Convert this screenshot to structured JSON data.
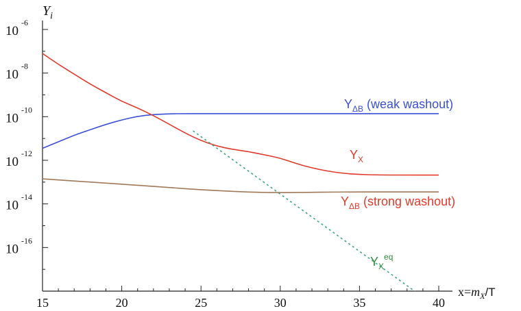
{
  "chart_data": {
    "type": "line",
    "title": "",
    "ylabel": {
      "base": "Y",
      "sub": "i"
    },
    "xlabel": {
      "prefix": "x=",
      "italic": "m",
      "sub": "X",
      "suffix": "/T"
    },
    "xlim": [
      15,
      40
    ],
    "ylim_log10": [
      -18,
      -6
    ],
    "yscale": "log",
    "grid": false,
    "x_ticks": [
      "15",
      "20",
      "25",
      "30",
      "35",
      "40"
    ],
    "y_ticks": [
      {
        "base": "10",
        "exp": "-6"
      },
      {
        "base": "10",
        "exp": "-8"
      },
      {
        "base": "10",
        "exp": "-10"
      },
      {
        "base": "10",
        "exp": "-12"
      },
      {
        "base": "10",
        "exp": "-14"
      },
      {
        "base": "10",
        "exp": "-16"
      }
    ],
    "series": [
      {
        "label": {
          "base": "Y",
          "sub": "ΔB",
          "suffix": " (weak washout)"
        },
        "color": "#3a4fd6",
        "style": "solid",
        "x": [
          15,
          16,
          17,
          18,
          19,
          20,
          21,
          22,
          23,
          24,
          25,
          28,
          32,
          36,
          40
        ],
        "log10y": [
          -11.45,
          -11.15,
          -10.85,
          -10.6,
          -10.35,
          -10.15,
          -9.98,
          -9.9,
          -9.87,
          -9.86,
          -9.86,
          -9.86,
          -9.86,
          -9.86,
          -9.86
        ]
      },
      {
        "label": {
          "base": "Y",
          "sub": "X",
          "suffix": ""
        },
        "color": "#e03a2a",
        "style": "solid",
        "x": [
          15,
          16,
          17,
          18,
          19,
          20,
          21,
          22,
          23,
          24,
          25,
          26,
          27,
          28,
          29,
          30,
          31,
          32,
          33,
          34,
          35,
          36,
          38,
          40
        ],
        "log10y": [
          -7.1,
          -7.6,
          -8.05,
          -8.5,
          -8.9,
          -9.3,
          -9.6,
          -9.95,
          -10.35,
          -10.75,
          -11.1,
          -11.35,
          -11.5,
          -11.6,
          -11.75,
          -11.9,
          -12.15,
          -12.35,
          -12.5,
          -12.6,
          -12.65,
          -12.67,
          -12.68,
          -12.68
        ]
      },
      {
        "label": {
          "base": "Y",
          "sub": "ΔB",
          "suffix": " (strong washout)"
        },
        "color": "#a07858",
        "style": "solid",
        "x": [
          15,
          18,
          20.5,
          23,
          25,
          27,
          29,
          31,
          34,
          37,
          40
        ],
        "log10y": [
          -12.85,
          -13.0,
          -13.12,
          -13.25,
          -13.35,
          -13.43,
          -13.48,
          -13.48,
          -13.45,
          -13.45,
          -13.45
        ]
      },
      {
        "label": {
          "base": "Y",
          "sub": "X",
          "sup": "eq",
          "suffix": ""
        },
        "color": "#3aa38a",
        "style": "dashed",
        "x": [
          24.5,
          28,
          32,
          36,
          40
        ],
        "log10y": [
          -10.65,
          -12.5,
          -14.6,
          -16.7,
          -18.8
        ]
      }
    ]
  }
}
